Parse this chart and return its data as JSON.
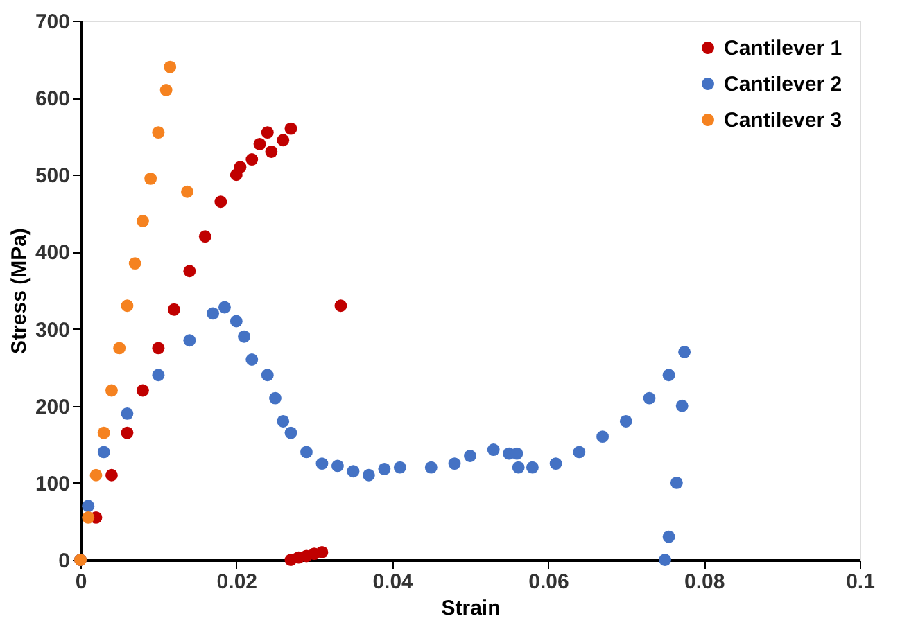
{
  "chart_data": {
    "type": "scatter",
    "xlabel": "Strain",
    "ylabel": "Stress (MPa)",
    "xlim": [
      0,
      0.1
    ],
    "ylim": [
      0,
      700
    ],
    "xticks": [
      0,
      0.02,
      0.04,
      0.06,
      0.08,
      0.1
    ],
    "yticks": [
      0,
      100,
      200,
      300,
      400,
      500,
      600,
      700
    ],
    "grid": false,
    "legend": "top right",
    "marker": "circle",
    "series": [
      {
        "name": "Cantilever 1",
        "color": "#c00000",
        "x": [
          0,
          0.002,
          0.004,
          0.006,
          0.008,
          0.01,
          0.012,
          0.014,
          0.016,
          0.018,
          0.02,
          0.0205,
          0.022,
          0.023,
          0.024,
          0.0245,
          0.026,
          0.027,
          0.0334,
          0.027,
          0.028,
          0.029,
          0.03,
          0.031
        ],
        "values": [
          0,
          55,
          110,
          165,
          220,
          275,
          325,
          375,
          420,
          465,
          500,
          510,
          520,
          540,
          555,
          530,
          545,
          560,
          330,
          0,
          3,
          5,
          8,
          10
        ]
      },
      {
        "name": "Cantilever 2",
        "color": "#4472c4",
        "x": [
          0,
          0.001,
          0.003,
          0.006,
          0.01,
          0.014,
          0.017,
          0.0185,
          0.02,
          0.021,
          0.022,
          0.024,
          0.025,
          0.026,
          0.027,
          0.029,
          0.031,
          0.033,
          0.035,
          0.037,
          0.039,
          0.041,
          0.045,
          0.048,
          0.05,
          0.053,
          0.055,
          0.056,
          0.0562,
          0.058,
          0.061,
          0.064,
          0.067,
          0.07,
          0.073,
          0.0755,
          0.0775,
          0.0772,
          0.0765,
          0.0755,
          0.075
        ],
        "values": [
          0,
          70,
          140,
          190,
          240,
          285,
          320,
          328,
          310,
          290,
          260,
          240,
          210,
          180,
          165,
          140,
          125,
          122,
          115,
          110,
          118,
          120,
          120,
          125,
          135,
          143,
          138,
          138,
          120,
          120,
          125,
          140,
          160,
          180,
          210,
          240,
          270,
          200,
          100,
          30,
          0
        ]
      },
      {
        "name": "Cantilever 3",
        "color": "#f58220",
        "x": [
          0,
          0.001,
          0.002,
          0.003,
          0.004,
          0.005,
          0.006,
          0.007,
          0.008,
          0.009,
          0.01,
          0.011,
          0.0115,
          0.0137
        ],
        "values": [
          0,
          55,
          110,
          165,
          220,
          275,
          330,
          385,
          440,
          495,
          555,
          610,
          640,
          478
        ]
      }
    ]
  }
}
